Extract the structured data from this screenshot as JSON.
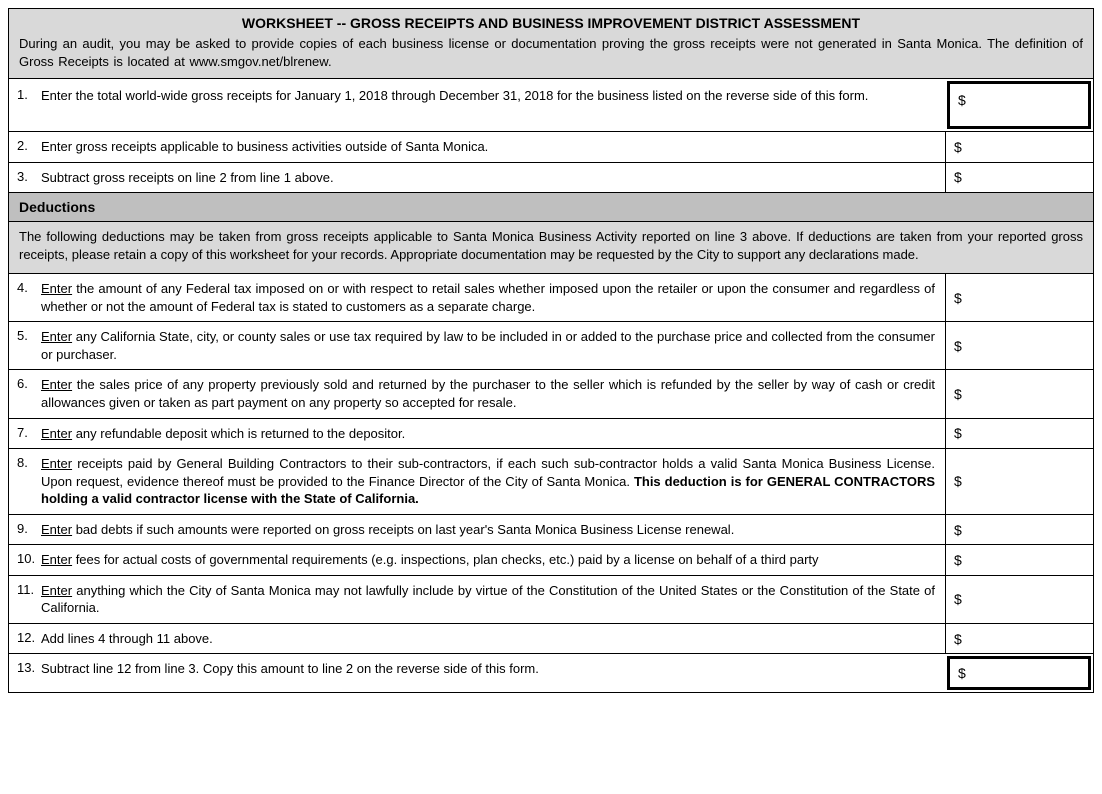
{
  "header": {
    "title": "WORKSHEET -- GROSS RECEIPTS AND BUSINESS IMPROVEMENT DISTRICT ASSESSMENT",
    "body": "During an audit, you may be asked to provide copies of each business license or documentation proving the gross receipts were not generated in Santa Monica. The definition of Gross Receipts is located at www.smgov.net/blrenew."
  },
  "lines": {
    "l1": {
      "num": "1.",
      "text": "Enter the total world-wide gross receipts for January 1, 2018 through December 31, 2018 for the business listed on the reverse side of this form.",
      "currency": "$"
    },
    "l2": {
      "num": "2.",
      "text": "Enter gross receipts applicable to business activities outside of Santa Monica.",
      "currency": "$"
    },
    "l3": {
      "num": "3.",
      "text": "Subtract gross receipts on line 2 from line 1 above.",
      "currency": "$"
    }
  },
  "deductions": {
    "title": "Deductions",
    "body": "The following deductions may be taken from gross receipts applicable to Santa Monica Business Activity reported on line  3 above.   If deductions are taken from your reported gross receipts, please retain a copy of this worksheet for your records.  Appropriate documentation may be requested by the City to support any declarations made."
  },
  "dlines": {
    "l4": {
      "num": "4.",
      "lead": "Enter",
      "rest": " the amount of any Federal tax imposed on or with respect to retail sales whether imposed upon the retailer or upon the consumer and regardless of whether or not the amount of Federal tax is stated to customers as a separate charge.",
      "currency": "$"
    },
    "l5": {
      "num": "5.",
      "lead": "Enter",
      "rest": " any California State, city, or county sales or use tax required by law to be included in or added to the purchase price and collected from the consumer or purchaser.",
      "currency": "$"
    },
    "l6": {
      "num": "6.",
      "lead": "Enter",
      "rest": " the sales price of any property previously sold and returned by the purchaser to the seller which is refunded by the seller by way of cash or credit allowances given or taken as part payment on any property so accepted for resale.",
      "currency": "$"
    },
    "l7": {
      "num": "7.",
      "lead": "Enter",
      "rest": " any refundable deposit which is returned to the depositor.",
      "currency": "$"
    },
    "l8": {
      "num": "8.",
      "lead": "Enter",
      "rest1": " receipts paid by General Building Contractors to their sub-contractors, if each such sub-contractor holds a valid Santa Monica Business License. Upon request, evidence thereof must be provided to the Finance Director of the City of Santa Monica. ",
      "bold": "This deduction is for GENERAL CONTRACTORS holding a valid contractor license with the State of California.",
      "currency": "$"
    },
    "l9": {
      "num": "9.",
      "lead": "Enter",
      "rest": " bad debts if such amounts were reported on gross receipts on last year's Santa Monica Business License renewal.",
      "currency": "$"
    },
    "l10": {
      "num": "10.",
      "lead": "Enter",
      "rest": " fees for actual costs of governmental requirements (e.g. inspections, plan checks, etc.) paid by a license on behalf of a third party",
      "currency": "$"
    },
    "l11": {
      "num": "11.",
      "lead": "Enter",
      "rest": " anything which the City of Santa Monica may not lawfully include by virtue of the Constitution of the United States or the Constitution of the State of California.",
      "currency": "$"
    },
    "l12": {
      "num": "12.",
      "text": "Add lines 4 through 11 above.",
      "currency": "$"
    },
    "l13": {
      "num": "13.",
      "text": "Subtract line 12 from line 3.  Copy this amount to line 2 on the reverse side of this form.",
      "currency": "$"
    }
  }
}
